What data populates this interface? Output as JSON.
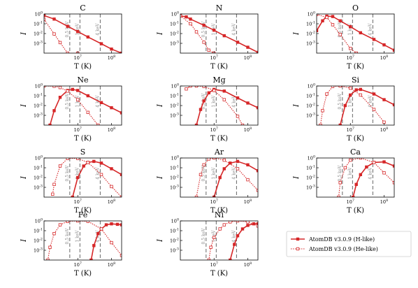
{
  "chart_data": {
    "type": "line",
    "xlabel": "T (K)",
    "ylabel": "I",
    "x_scale": "log",
    "y_scale": "log",
    "xlim": [
      1000000,
      200000000
    ],
    "ylim": [
      0.0001,
      1
    ],
    "x_ticks": [
      "10^7",
      "10^8"
    ],
    "y_ticks": [
      "10^-3",
      "10^-2",
      "10^-1",
      "10^0"
    ],
    "reference_lines": [
      {
        "label": "0.5 keV",
        "T": 5800000
      },
      {
        "label": "1 keV",
        "T": 11600000
      },
      {
        "label": "4 keV",
        "T": 46400000
      }
    ],
    "legend": {
      "placement": "lower-right",
      "entries": [
        {
          "name": "AtomDB v3.0.9 (H-like)",
          "color": "#d62728",
          "style": "solid-filled-square"
        },
        {
          "name": "AtomDB v3.0.9 (He-like)",
          "color": "#d62728",
          "style": "dotted-open-square"
        }
      ]
    },
    "panels": [
      {
        "element": "C",
        "series": [
          {
            "name": "AtomDB v3.0.9 (H-like)",
            "x": [
              1000000,
              2000000,
              5000000,
              10000000,
              20000000,
              50000000,
              100000000,
              200000000
            ],
            "y": [
              0.7,
              0.3,
              0.055,
              0.016,
              0.0045,
              0.0009,
              0.00026,
              0.0001
            ]
          },
          {
            "name": "AtomDB v3.0.9 (He-like)",
            "x": [
              1000000,
              2000000,
              3000000,
              5000000,
              10000000
            ],
            "y": [
              0.28,
              0.009,
              0.0012,
              0.0001,
              0.0001
            ]
          }
        ]
      },
      {
        "element": "N",
        "series": [
          {
            "name": "AtomDB v3.0.9 (H-like)",
            "x": [
              1000000,
              1500000,
              2000000,
              5000000,
              10000000,
              20000000,
              50000000,
              100000000,
              200000000
            ],
            "y": [
              0.65,
              0.5,
              0.3,
              0.07,
              0.022,
              0.006,
              0.0013,
              0.0004,
              0.00012
            ]
          },
          {
            "name": "AtomDB v3.0.9 (He-like)",
            "x": [
              1000000,
              2000000,
              3000000,
              5000000,
              7000000,
              10000000
            ],
            "y": [
              0.65,
              0.1,
              0.015,
              0.0013,
              0.0002,
              0.0001
            ]
          }
        ]
      },
      {
        "element": "O",
        "series": [
          {
            "name": "AtomDB v3.0.9 (H-like)",
            "x": [
              1000000,
              1500000,
              2000000,
              3000000,
              5000000,
              10000000,
              20000000,
              50000000,
              100000000,
              200000000
            ],
            "y": [
              0.02,
              0.2,
              0.6,
              0.55,
              0.2,
              0.05,
              0.012,
              0.0025,
              0.0007,
              0.0002
            ]
          },
          {
            "name": "AtomDB v3.0.9 (He-like)",
            "x": [
              1000000,
              2000000,
              3000000,
              5000000,
              10000000,
              15000000
            ],
            "y": [
              0.9,
              0.45,
              0.08,
              0.008,
              0.0003,
              0.0001
            ]
          }
        ]
      },
      {
        "element": "Ne",
        "series": [
          {
            "name": "AtomDB v3.0.9 (H-like)",
            "x": [
              1500000,
              2000000,
              3000000,
              5000000,
              7000000,
              10000000,
              20000000,
              50000000,
              100000000,
              200000000
            ],
            "y": [
              0.0001,
              0.003,
              0.07,
              0.35,
              0.45,
              0.35,
              0.1,
              0.02,
              0.006,
              0.0018
            ]
          },
          {
            "name": "AtomDB v3.0.9 (He-like)",
            "x": [
              1000000,
              2000000,
              3000000,
              5000000,
              10000000,
              20000000,
              40000000
            ],
            "y": [
              1,
              0.95,
              0.7,
              0.3,
              0.04,
              0.002,
              0.0001
            ]
          }
        ]
      },
      {
        "element": "Mg",
        "series": [
          {
            "name": "AtomDB v3.0.9 (H-like)",
            "x": [
              3000000,
              4000000,
              5000000,
              7000000,
              10000000,
              20000000,
              50000000,
              100000000,
              200000000
            ],
            "y": [
              0.0001,
              0.004,
              0.03,
              0.2,
              0.45,
              0.3,
              0.06,
              0.018,
              0.006
            ]
          },
          {
            "name": "AtomDB v3.0.9 (He-like)",
            "x": [
              1500000,
              2000000,
              3000000,
              5000000,
              10000000,
              20000000,
              50000000,
              70000000
            ],
            "y": [
              0.5,
              1,
              1,
              0.9,
              0.35,
              0.04,
              0.0008,
              0.0001
            ]
          }
        ]
      },
      {
        "element": "Si",
        "series": [
          {
            "name": "AtomDB v3.0.9 (H-like)",
            "x": [
              5000000,
              7000000,
              10000000,
              15000000,
              20000000,
              50000000,
              100000000,
              200000000
            ],
            "y": [
              0.0001,
              0.01,
              0.12,
              0.4,
              0.45,
              0.15,
              0.04,
              0.012
            ]
          },
          {
            "name": "AtomDB v3.0.9 (He-like)",
            "x": [
              1300000,
              1500000,
              2000000,
              3000000,
              5000000,
              10000000,
              20000000,
              50000000,
              100000000
            ],
            "y": [
              0.0001,
              0.003,
              0.15,
              0.9,
              1,
              0.6,
              0.12,
              0.004,
              0.0002
            ]
          }
        ]
      },
      {
        "element": "S",
        "series": [
          {
            "name": "AtomDB v3.0.9 (H-like)",
            "x": [
              7000000,
              10000000,
              15000000,
              20000000,
              30000000,
              50000000,
              100000000,
              200000000
            ],
            "y": [
              0.0001,
              0.01,
              0.15,
              0.35,
              0.45,
              0.3,
              0.08,
              0.02
            ]
          },
          {
            "name": "AtomDB v3.0.9 (He-like)",
            "x": [
              1800000,
              2000000,
              3000000,
              5000000,
              10000000,
              20000000,
              50000000,
              100000000,
              200000000
            ],
            "y": [
              0.0002,
              0.002,
              0.15,
              0.9,
              0.9,
              0.35,
              0.02,
              0.0012,
              0.0001
            ]
          }
        ]
      },
      {
        "element": "Ar",
        "series": [
          {
            "name": "AtomDB v3.0.9 (H-like)",
            "x": [
              10000000,
              15000000,
              20000000,
              30000000,
              50000000,
              100000000,
              200000000
            ],
            "y": [
              0.0001,
              0.01,
              0.08,
              0.3,
              0.45,
              0.2,
              0.05
            ]
          },
          {
            "name": "AtomDB v3.0.9 (He-like)",
            "x": [
              3000000,
              4000000,
              5000000,
              7000000,
              10000000,
              20000000,
              50000000,
              100000000,
              200000000
            ],
            "y": [
              0.0001,
              0.02,
              0.2,
              0.8,
              1,
              0.6,
              0.08,
              0.006,
              0.0005
            ]
          }
        ]
      },
      {
        "element": "Ca",
        "series": [
          {
            "name": "AtomDB v3.0.9 (H-like)",
            "x": [
              12000000,
              15000000,
              20000000,
              30000000,
              50000000,
              100000000,
              200000000
            ],
            "y": [
              0.0001,
              0.002,
              0.02,
              0.12,
              0.35,
              0.4,
              0.15
            ]
          },
          {
            "name": "AtomDB v3.0.9 (He-like)",
            "x": [
              4500000,
              5000000,
              7000000,
              10000000,
              20000000,
              50000000,
              100000000,
              200000000
            ],
            "y": [
              0.0001,
              0.003,
              0.1,
              0.6,
              1,
              0.35,
              0.03,
              0.003
            ]
          }
        ]
      },
      {
        "element": "Fe",
        "series": [
          {
            "name": "AtomDB v3.0.9 (H-like)",
            "x": [
              25000000,
              30000000,
              40000000,
              50000000,
              70000000,
              100000000,
              150000000,
              200000000
            ],
            "y": [
              0.0001,
              0.003,
              0.05,
              0.15,
              0.4,
              0.5,
              0.45,
              0.4
            ]
          },
          {
            "name": "AtomDB v3.0.9 (He-like)",
            "x": [
              1300000,
              1500000,
              2000000,
              3000000,
              5000000,
              10000000,
              20000000,
              50000000,
              100000000,
              200000000
            ],
            "y": [
              0.0001,
              0.002,
              0.05,
              0.4,
              0.9,
              1,
              0.9,
              0.15,
              0.006,
              0.0003
            ]
          }
        ]
      },
      {
        "element": "Ni",
        "series": [
          {
            "name": "AtomDB v3.0.9 (H-like)",
            "x": [
              30000000,
              40000000,
              50000000,
              70000000,
              100000000,
              150000000,
              200000000
            ],
            "y": [
              0.0001,
              0.004,
              0.03,
              0.15,
              0.35,
              0.5,
              0.5
            ]
          },
          {
            "name": "AtomDB v3.0.9 (He-like)",
            "x": [
              7000000,
              8000000,
              10000000,
              15000000,
              20000000,
              30000000,
              50000000,
              100000000,
              200000000
            ],
            "y": [
              0.0001,
              0.002,
              0.02,
              0.15,
              0.4,
              0.8,
              1,
              0.8,
              0.3
            ]
          }
        ]
      }
    ]
  }
}
